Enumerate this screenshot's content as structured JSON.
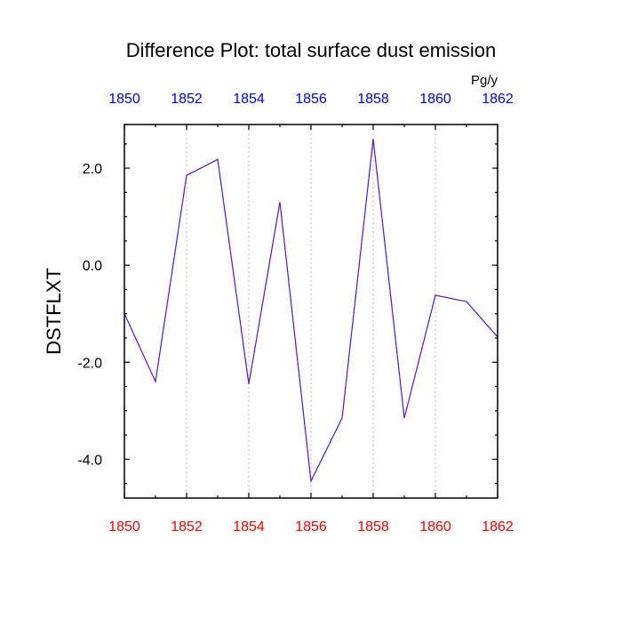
{
  "chart_data": {
    "type": "line",
    "title": "Difference Plot: total surface dust emission",
    "units": "Pg/y",
    "ylabel": "DSTFLXT",
    "xlabel": "",
    "x": [
      1850,
      1851,
      1852,
      1853,
      1854,
      1855,
      1856,
      1857,
      1858,
      1859,
      1860,
      1861,
      1862
    ],
    "xlim": [
      1850,
      1862
    ],
    "ylim": [
      -4.8,
      2.9
    ],
    "xticks": [
      1850,
      1852,
      1854,
      1856,
      1858,
      1860,
      1862
    ],
    "xtick_labels": [
      "1850",
      "1852",
      "1854",
      "1856",
      "1858",
      "1860",
      "1862"
    ],
    "yticks": [
      2.0,
      0.0,
      -2.0,
      -4.0
    ],
    "ytick_labels": [
      "2.0",
      "0.0",
      "-2.0",
      "-4.0"
    ],
    "grid": "vertical dotted at major x ticks",
    "series": [
      {
        "values": [
          -1.0,
          -2.4,
          1.85,
          2.18,
          -2.45,
          1.3,
          -4.45,
          -3.15,
          2.6,
          -3.15,
          -0.62,
          -0.75,
          -1.48
        ],
        "color": "#7b12c9",
        "dash_color": "#1a1aff",
        "style": "dashed"
      }
    ],
    "colors": {
      "top_axis_labels": "#0000ff",
      "bottom_axis_labels": "#ff0000",
      "grid": "#bbbbbb",
      "axes": "#000000"
    }
  }
}
